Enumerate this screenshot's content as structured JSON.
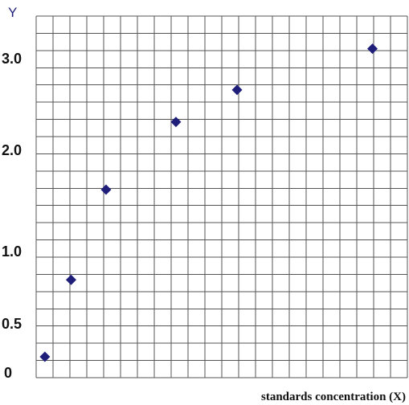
{
  "chart_data": {
    "type": "scatter",
    "title": "",
    "xlabel": "standards concentration (X)",
    "ylabel": "Y",
    "y_ticks": [
      {
        "value": 0,
        "label": "0"
      },
      {
        "value": 0.5,
        "label": "0.5"
      },
      {
        "value": 1.0,
        "label": "1.0"
      },
      {
        "value": 2.0,
        "label": "2.0"
      },
      {
        "value": 3.0,
        "label": "3.0"
      }
    ],
    "series": [
      {
        "points": [
          {
            "x": 0.2,
            "y": 0.1
          },
          {
            "x": 0.8,
            "y": 0.8
          },
          {
            "x": 1.6,
            "y": 1.6
          },
          {
            "x": 3.2,
            "y": 2.3
          },
          {
            "x": 4.6,
            "y": 2.65
          },
          {
            "x": 7.7,
            "y": 3.1
          }
        ],
        "marker": "diamond",
        "color": "#1f1f7a"
      }
    ],
    "xlim": [
      0,
      8.5
    ],
    "grid": true,
    "grid_color": "#555555"
  }
}
